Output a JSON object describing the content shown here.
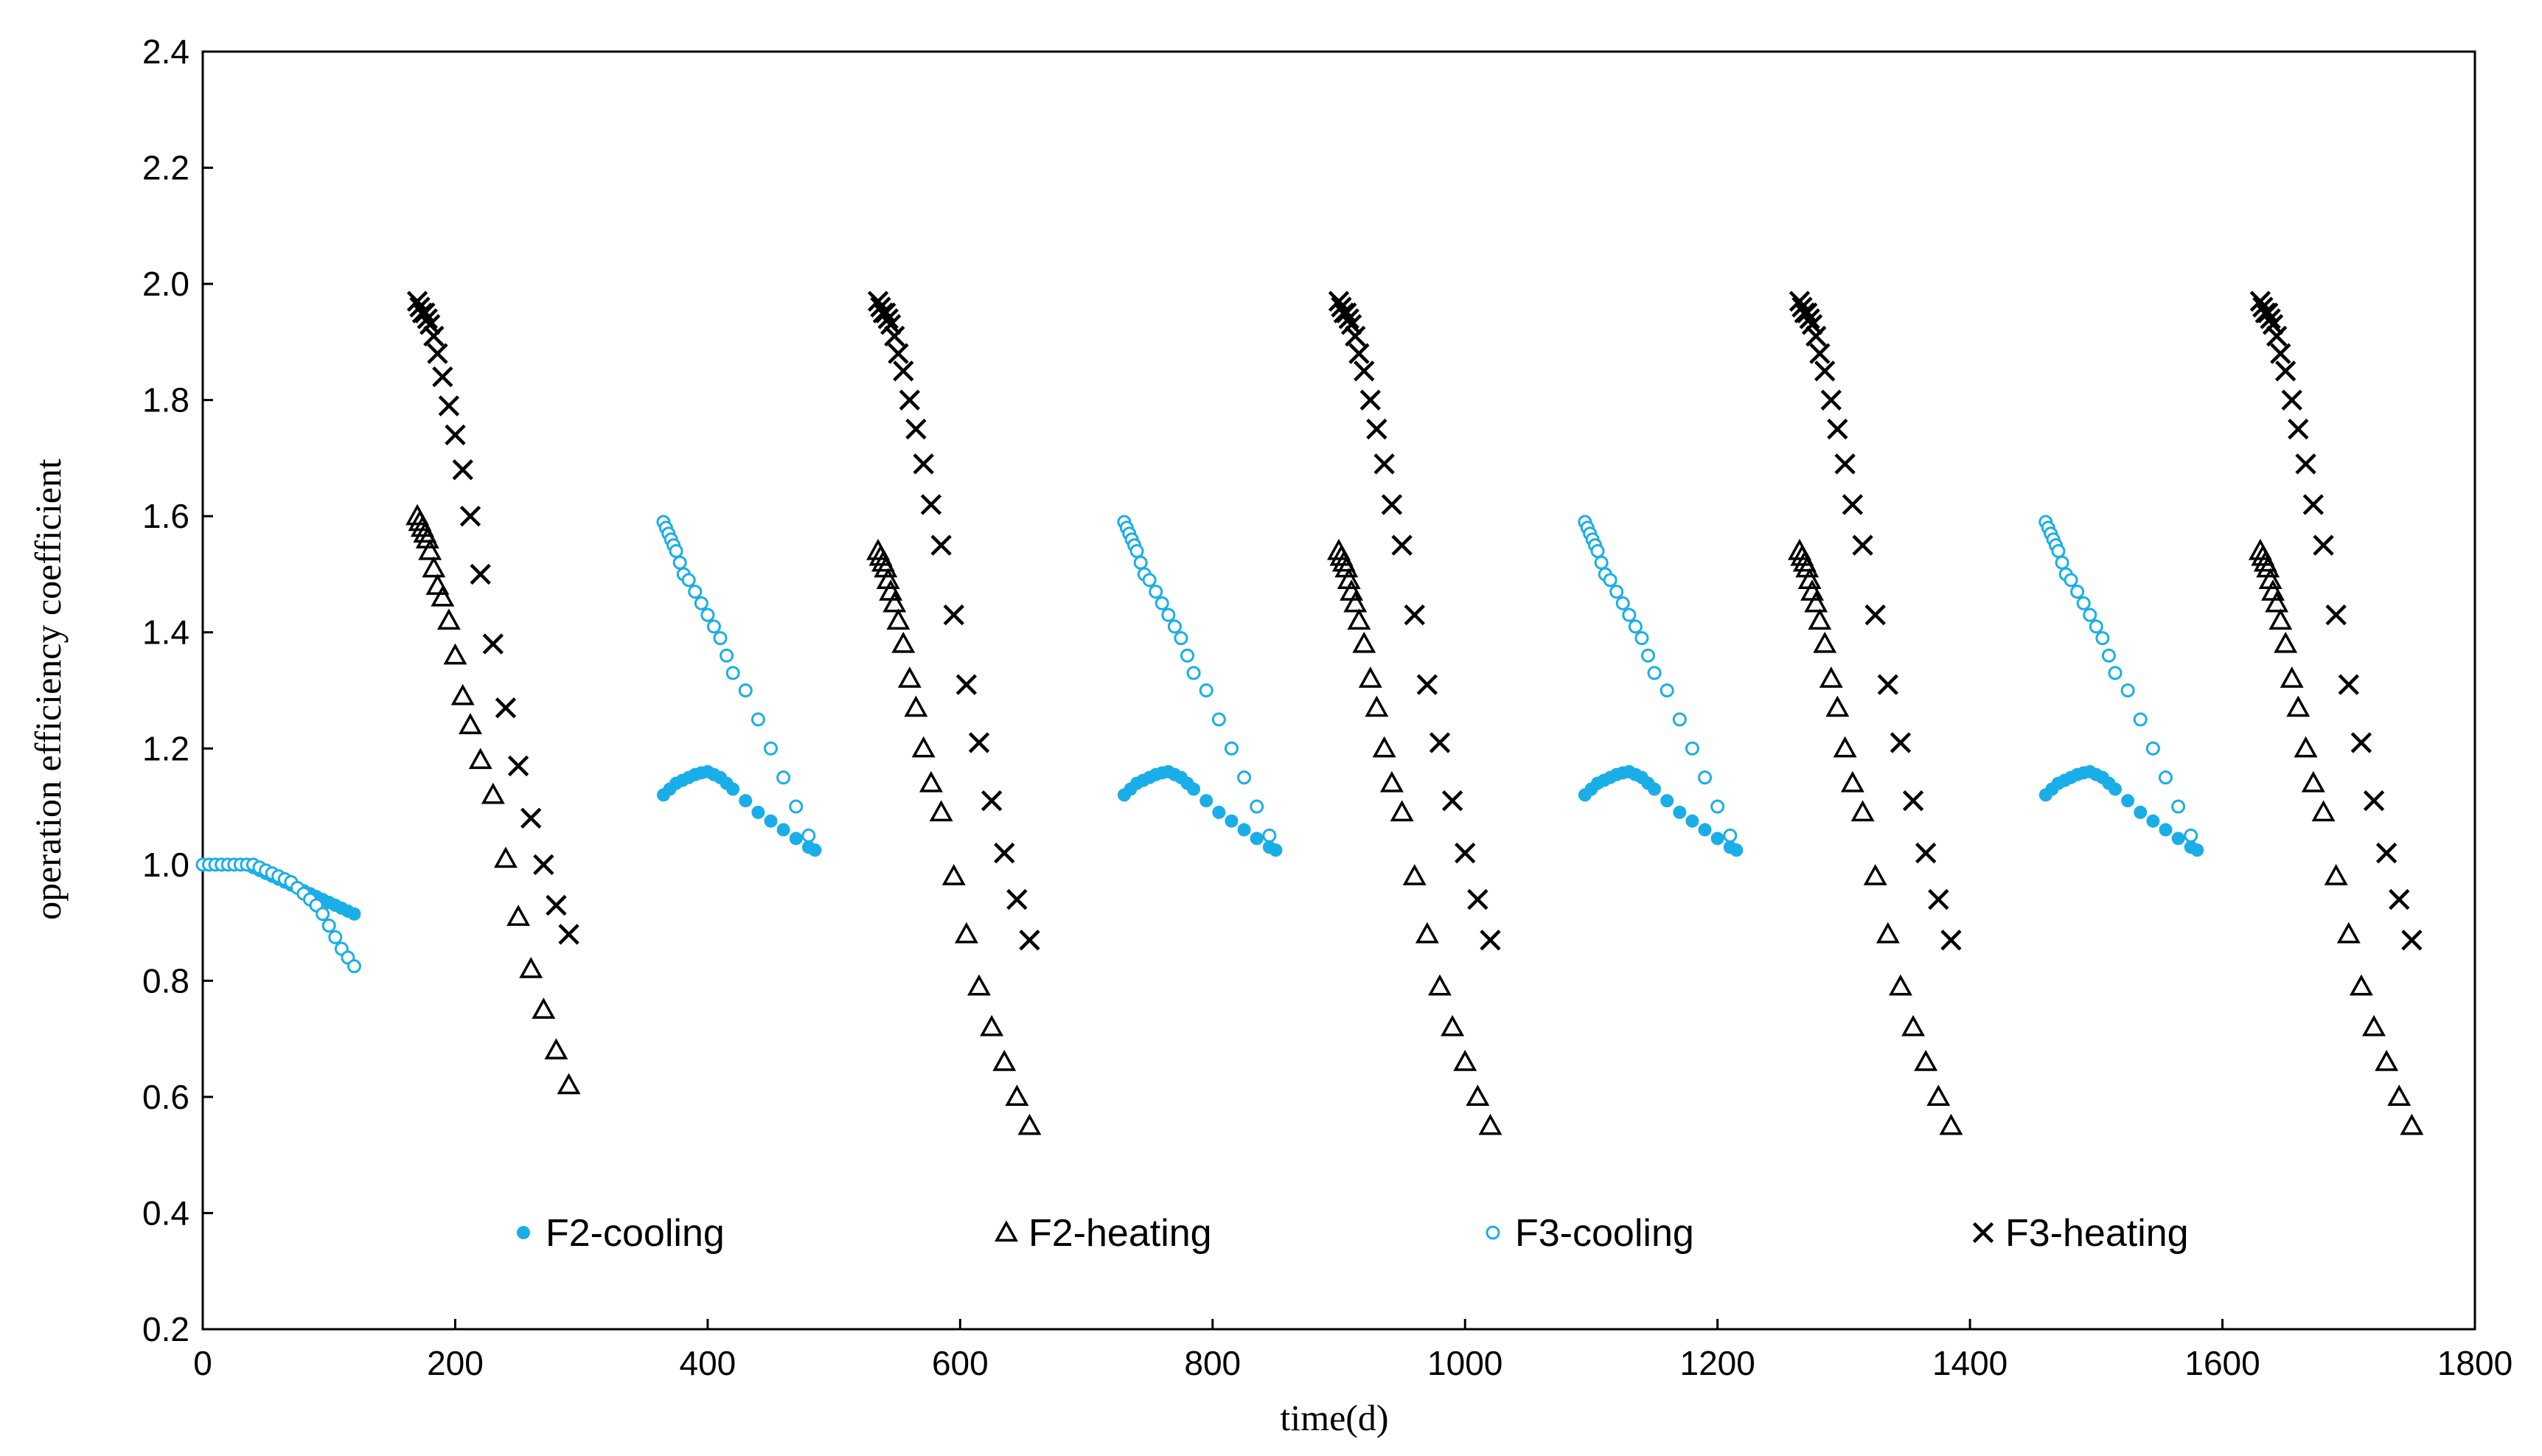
{
  "chart_data": {
    "type": "scatter",
    "title": "",
    "xlabel": "time(d)",
    "ylabel": "operation efficiency coefficient",
    "xlim": [
      0,
      1800
    ],
    "ylim": [
      0.2,
      2.4
    ],
    "xticks": [
      "0",
      "200",
      "400",
      "600",
      "800",
      "1000",
      "1200",
      "1400",
      "1600",
      "1800"
    ],
    "yticks": [
      "0.2",
      "0.4",
      "0.6",
      "0.8",
      "1.0",
      "1.2",
      "1.4",
      "1.6",
      "1.8",
      "2.0",
      "2.2",
      "2.4"
    ],
    "grid": false,
    "legend_position": "bottom-inside",
    "colors": {
      "cooling": "#1aaee8",
      "heating": "#000000",
      "axis": "#000000"
    },
    "series": [
      {
        "name": "F2-cooling",
        "marker": "filled-circle",
        "x": [
          0,
          5,
          10,
          15,
          20,
          25,
          30,
          35,
          40,
          45,
          50,
          55,
          60,
          65,
          70,
          75,
          80,
          85,
          90,
          95,
          100,
          105,
          110,
          115,
          120,
          365,
          370,
          375,
          380,
          385,
          390,
          395,
          400,
          405,
          410,
          415,
          420,
          430,
          440,
          450,
          460,
          470,
          480,
          485,
          730,
          735,
          740,
          745,
          750,
          755,
          760,
          765,
          770,
          775,
          780,
          785,
          795,
          805,
          815,
          825,
          835,
          845,
          850,
          1095,
          1100,
          1105,
          1110,
          1115,
          1120,
          1125,
          1130,
          1135,
          1140,
          1145,
          1150,
          1160,
          1170,
          1180,
          1190,
          1200,
          1210,
          1215,
          1460,
          1465,
          1470,
          1475,
          1480,
          1485,
          1490,
          1495,
          1500,
          1505,
          1510,
          1515,
          1525,
          1535,
          1545,
          1555,
          1565,
          1575,
          1580
        ],
        "y": [
          1.0,
          1.0,
          1.0,
          1.0,
          1.0,
          1.0,
          1.0,
          1.0,
          0.995,
          0.99,
          0.985,
          0.98,
          0.975,
          0.97,
          0.965,
          0.96,
          0.955,
          0.95,
          0.945,
          0.94,
          0.935,
          0.93,
          0.925,
          0.92,
          0.915,
          1.12,
          1.13,
          1.14,
          1.145,
          1.15,
          1.155,
          1.158,
          1.16,
          1.155,
          1.15,
          1.14,
          1.13,
          1.11,
          1.09,
          1.075,
          1.06,
          1.045,
          1.03,
          1.025,
          1.12,
          1.13,
          1.14,
          1.145,
          1.15,
          1.155,
          1.158,
          1.16,
          1.155,
          1.15,
          1.14,
          1.13,
          1.11,
          1.09,
          1.075,
          1.06,
          1.045,
          1.03,
          1.025,
          1.12,
          1.13,
          1.14,
          1.145,
          1.15,
          1.155,
          1.158,
          1.16,
          1.155,
          1.15,
          1.14,
          1.13,
          1.11,
          1.09,
          1.075,
          1.06,
          1.045,
          1.03,
          1.025,
          1.12,
          1.13,
          1.14,
          1.145,
          1.15,
          1.155,
          1.158,
          1.16,
          1.155,
          1.15,
          1.14,
          1.13,
          1.11,
          1.09,
          1.075,
          1.06,
          1.045,
          1.03,
          1.025
        ]
      },
      {
        "name": "F2-heating",
        "marker": "triangle",
        "x": [
          170,
          172,
          174,
          176,
          178,
          180,
          183,
          186,
          190,
          195,
          200,
          206,
          212,
          220,
          230,
          240,
          250,
          260,
          270,
          280,
          290,
          535,
          537,
          539,
          541,
          543,
          545,
          548,
          551,
          555,
          560,
          565,
          571,
          577,
          585,
          595,
          605,
          615,
          625,
          635,
          645,
          655,
          900,
          902,
          904,
          906,
          908,
          910,
          913,
          916,
          920,
          925,
          930,
          936,
          942,
          950,
          960,
          970,
          980,
          990,
          1000,
          1010,
          1020,
          1265,
          1267,
          1269,
          1271,
          1273,
          1275,
          1278,
          1281,
          1285,
          1290,
          1295,
          1301,
          1307,
          1315,
          1325,
          1335,
          1345,
          1355,
          1365,
          1375,
          1385,
          1630,
          1632,
          1634,
          1636,
          1638,
          1640,
          1643,
          1646,
          1650,
          1655,
          1660,
          1666,
          1672,
          1680,
          1690,
          1700,
          1710,
          1720,
          1730,
          1740,
          1750
        ],
        "y": [
          1.6,
          1.59,
          1.58,
          1.57,
          1.56,
          1.54,
          1.51,
          1.48,
          1.46,
          1.42,
          1.36,
          1.29,
          1.24,
          1.18,
          1.12,
          1.01,
          0.91,
          0.82,
          0.75,
          0.68,
          0.62,
          1.54,
          1.53,
          1.52,
          1.51,
          1.49,
          1.47,
          1.45,
          1.42,
          1.38,
          1.32,
          1.27,
          1.2,
          1.14,
          1.09,
          0.98,
          0.88,
          0.79,
          0.72,
          0.66,
          0.6,
          0.55,
          1.54,
          1.53,
          1.52,
          1.51,
          1.49,
          1.47,
          1.45,
          1.42,
          1.38,
          1.32,
          1.27,
          1.2,
          1.14,
          1.09,
          0.98,
          0.88,
          0.79,
          0.72,
          0.66,
          0.6,
          0.55,
          1.54,
          1.53,
          1.52,
          1.51,
          1.49,
          1.47,
          1.45,
          1.42,
          1.38,
          1.32,
          1.27,
          1.2,
          1.14,
          1.09,
          0.98,
          0.88,
          0.79,
          0.72,
          0.66,
          0.6,
          0.55,
          1.54,
          1.53,
          1.52,
          1.51,
          1.49,
          1.47,
          1.45,
          1.42,
          1.38,
          1.32,
          1.27,
          1.2,
          1.14,
          1.09,
          0.98,
          0.88,
          0.79,
          0.72,
          0.66,
          0.6,
          0.55
        ]
      },
      {
        "name": "F3-cooling",
        "marker": "open-circle",
        "x": [
          0,
          5,
          10,
          15,
          20,
          25,
          30,
          35,
          40,
          45,
          50,
          55,
          60,
          65,
          70,
          75,
          80,
          85,
          90,
          95,
          100,
          105,
          110,
          115,
          120,
          365,
          367,
          369,
          371,
          373,
          375,
          378,
          381,
          385,
          390,
          395,
          400,
          405,
          410,
          415,
          420,
          430,
          440,
          450,
          460,
          470,
          480,
          730,
          732,
          734,
          736,
          738,
          740,
          743,
          746,
          750,
          755,
          760,
          765,
          770,
          775,
          780,
          785,
          795,
          805,
          815,
          825,
          835,
          845,
          1095,
          1097,
          1099,
          1101,
          1103,
          1105,
          1108,
          1111,
          1115,
          1120,
          1125,
          1130,
          1135,
          1140,
          1145,
          1150,
          1160,
          1170,
          1180,
          1190,
          1200,
          1210,
          1460,
          1462,
          1464,
          1466,
          1468,
          1470,
          1473,
          1476,
          1480,
          1485,
          1490,
          1495,
          1500,
          1505,
          1510,
          1515,
          1525,
          1535,
          1545,
          1555,
          1565,
          1575
        ],
        "y": [
          1.0,
          1.0,
          1.0,
          1.0,
          1.0,
          1.0,
          1.0,
          1.0,
          1.0,
          0.995,
          0.99,
          0.985,
          0.98,
          0.975,
          0.97,
          0.96,
          0.95,
          0.94,
          0.93,
          0.915,
          0.895,
          0.875,
          0.855,
          0.84,
          0.825,
          1.59,
          1.58,
          1.57,
          1.56,
          1.55,
          1.54,
          1.52,
          1.5,
          1.49,
          1.47,
          1.45,
          1.43,
          1.41,
          1.39,
          1.36,
          1.33,
          1.3,
          1.25,
          1.2,
          1.15,
          1.1,
          1.05,
          1.59,
          1.58,
          1.57,
          1.56,
          1.55,
          1.54,
          1.52,
          1.5,
          1.49,
          1.47,
          1.45,
          1.43,
          1.41,
          1.39,
          1.36,
          1.33,
          1.3,
          1.25,
          1.2,
          1.15,
          1.1,
          1.05,
          1.59,
          1.58,
          1.57,
          1.56,
          1.55,
          1.54,
          1.52,
          1.5,
          1.49,
          1.47,
          1.45,
          1.43,
          1.41,
          1.39,
          1.36,
          1.33,
          1.3,
          1.25,
          1.2,
          1.15,
          1.1,
          1.05,
          1.59,
          1.58,
          1.57,
          1.56,
          1.55,
          1.54,
          1.52,
          1.5,
          1.49,
          1.47,
          1.45,
          1.43,
          1.41,
          1.39,
          1.36,
          1.33,
          1.3,
          1.25,
          1.2,
          1.15,
          1.1,
          1.05
        ]
      },
      {
        "name": "F3-heating",
        "marker": "cross",
        "x": [
          170,
          172,
          174,
          176,
          178,
          180,
          183,
          186,
          190,
          195,
          200,
          206,
          212,
          220,
          230,
          240,
          250,
          260,
          270,
          280,
          290,
          535,
          537,
          539,
          541,
          543,
          545,
          548,
          551,
          555,
          560,
          565,
          571,
          577,
          585,
          595,
          605,
          615,
          625,
          635,
          645,
          655,
          900,
          902,
          904,
          906,
          908,
          910,
          913,
          916,
          920,
          925,
          930,
          936,
          942,
          950,
          960,
          970,
          980,
          990,
          1000,
          1010,
          1020,
          1265,
          1267,
          1269,
          1271,
          1273,
          1275,
          1278,
          1281,
          1285,
          1290,
          1295,
          1301,
          1307,
          1315,
          1325,
          1335,
          1345,
          1355,
          1365,
          1375,
          1385,
          1630,
          1632,
          1634,
          1636,
          1638,
          1640,
          1643,
          1646,
          1650,
          1655,
          1660,
          1666,
          1672,
          1680,
          1690,
          1700,
          1710,
          1720,
          1730,
          1740,
          1750
        ],
        "y": [
          1.97,
          1.96,
          1.95,
          1.95,
          1.94,
          1.93,
          1.91,
          1.88,
          1.84,
          1.79,
          1.74,
          1.68,
          1.6,
          1.5,
          1.38,
          1.27,
          1.17,
          1.08,
          1.0,
          0.93,
          0.88,
          1.97,
          1.96,
          1.95,
          1.95,
          1.94,
          1.93,
          1.91,
          1.88,
          1.85,
          1.8,
          1.75,
          1.69,
          1.62,
          1.55,
          1.43,
          1.31,
          1.21,
          1.11,
          1.02,
          0.94,
          0.87,
          1.97,
          1.96,
          1.95,
          1.95,
          1.94,
          1.93,
          1.91,
          1.88,
          1.85,
          1.8,
          1.75,
          1.69,
          1.62,
          1.55,
          1.43,
          1.31,
          1.21,
          1.11,
          1.02,
          0.94,
          0.87,
          1.97,
          1.96,
          1.95,
          1.95,
          1.94,
          1.93,
          1.91,
          1.88,
          1.85,
          1.8,
          1.75,
          1.69,
          1.62,
          1.55,
          1.43,
          1.31,
          1.21,
          1.11,
          1.02,
          0.94,
          0.87,
          1.97,
          1.96,
          1.95,
          1.95,
          1.94,
          1.93,
          1.91,
          1.88,
          1.85,
          1.8,
          1.75,
          1.69,
          1.62,
          1.55,
          1.43,
          1.31,
          1.21,
          1.11,
          1.02,
          0.94,
          0.87
        ]
      }
    ]
  }
}
